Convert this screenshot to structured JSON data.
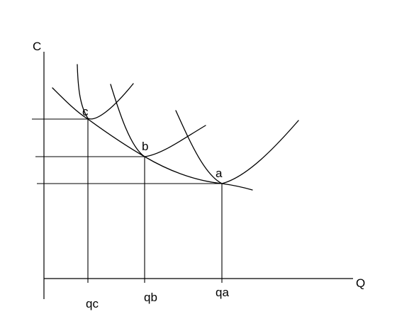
{
  "axes": {
    "y_label": "C",
    "x_label": "Q"
  },
  "points": [
    {
      "id": "c",
      "label": "c",
      "tick_label": "qc"
    },
    {
      "id": "b",
      "label": "b",
      "tick_label": "qb"
    },
    {
      "id": "a",
      "label": "a",
      "tick_label": "qa"
    }
  ],
  "colors": {
    "background": "#ffffff",
    "ink": "#000000"
  }
}
